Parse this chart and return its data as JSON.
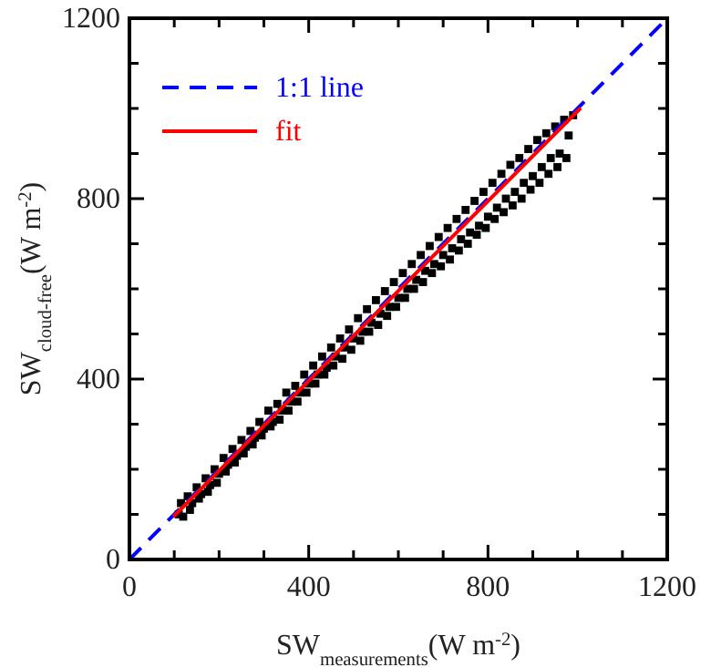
{
  "chart_data": {
    "type": "scatter",
    "xlabel": "SW$_{measurements}$(W m$^{-2}$)",
    "ylabel": "SW$_{cloud-free}$(W m$^{-2}$)",
    "xlim": [
      0,
      1200
    ],
    "ylim": [
      0,
      1200
    ],
    "xticks": [
      0,
      {
        "value": 100,
        "label": null
      },
      {
        "value": 200,
        "label": null
      },
      {
        "value": 300,
        "label": null
      },
      400,
      {
        "value": 500,
        "label": null
      },
      {
        "value": 600,
        "label": null
      },
      {
        "value": 700,
        "label": null
      },
      800,
      {
        "value": 900,
        "label": null
      },
      {
        "value": 1000,
        "label": null
      },
      {
        "value": 1100,
        "label": null
      },
      1200
    ],
    "yticks": [
      0,
      {
        "value": 100,
        "label": null
      },
      {
        "value": 200,
        "label": null
      },
      {
        "value": 300,
        "label": null
      },
      400,
      {
        "value": 500,
        "label": null
      },
      {
        "value": 600,
        "label": null
      },
      {
        "value": 700,
        "label": null
      },
      800,
      {
        "value": 900,
        "label": null
      },
      {
        "value": 1000,
        "label": null
      },
      {
        "value": 1100,
        "label": null
      },
      1200
    ],
    "grid": false,
    "legend": "top left",
    "series": [
      {
        "color": "#000000",
        "marker": "square",
        "x": [
          110,
          115,
          120,
          130,
          135,
          140,
          150,
          155,
          160,
          170,
          175,
          180,
          190,
          195,
          200,
          210,
          215,
          220,
          230,
          235,
          240,
          250,
          255,
          260,
          270,
          275,
          280,
          290,
          295,
          300,
          310,
          315,
          320,
          330,
          335,
          340,
          350,
          355,
          360,
          370,
          375,
          380,
          390,
          395,
          400,
          410,
          415,
          420,
          430,
          435,
          440,
          450,
          455,
          460,
          470,
          475,
          480,
          490,
          495,
          500,
          510,
          515,
          520,
          530,
          535,
          540,
          550,
          555,
          560,
          570,
          575,
          580,
          590,
          595,
          600,
          610,
          615,
          620,
          630,
          635,
          640,
          650,
          655,
          660,
          670,
          675,
          680,
          690,
          695,
          700,
          710,
          715,
          720,
          730,
          735,
          740,
          750,
          755,
          760,
          770,
          775,
          780,
          790,
          795,
          800,
          810,
          815,
          820,
          830,
          835,
          840,
          850,
          855,
          860,
          870,
          875,
          880,
          890,
          895,
          900,
          910,
          915,
          920,
          930,
          935,
          940,
          950,
          955,
          960,
          970,
          975,
          980,
          990
        ],
        "values": [
          100,
          125,
          95,
          140,
          110,
          125,
          160,
          135,
          145,
          180,
          150,
          165,
          200,
          170,
          190,
          225,
          195,
          210,
          245,
          215,
          230,
          265,
          235,
          250,
          285,
          255,
          270,
          305,
          275,
          290,
          330,
          295,
          305,
          345,
          310,
          330,
          370,
          330,
          350,
          385,
          350,
          370,
          410,
          370,
          390,
          430,
          390,
          410,
          450,
          410,
          425,
          470,
          430,
          450,
          490,
          445,
          470,
          510,
          465,
          490,
          535,
          485,
          505,
          555,
          505,
          525,
          575,
          520,
          545,
          595,
          540,
          560,
          615,
          560,
          580,
          635,
          580,
          600,
          655,
          600,
          620,
          675,
          615,
          640,
          695,
          635,
          655,
          715,
          650,
          675,
          735,
          665,
          690,
          755,
          685,
          710,
          775,
          700,
          725,
          795,
          720,
          740,
          815,
          735,
          760,
          835,
          755,
          780,
          855,
          770,
          800,
          875,
          785,
          815,
          890,
          800,
          835,
          910,
          820,
          850,
          930,
          835,
          870,
          945,
          855,
          890,
          960,
          870,
          900,
          975,
          890,
          940,
          985
        ]
      },
      {
        "type": "line",
        "name": "1:1 line",
        "color": "#0000ff",
        "line_style": "dashed",
        "marker": "none",
        "x": [
          0,
          1200
        ],
        "values": [
          0,
          1200
        ]
      },
      {
        "type": "line",
        "name": "fit",
        "color": "#ff0000",
        "line_style": "solid",
        "marker": "none",
        "x": [
          98,
          1007
        ],
        "values": [
          95,
          1001
        ]
      }
    ]
  }
}
